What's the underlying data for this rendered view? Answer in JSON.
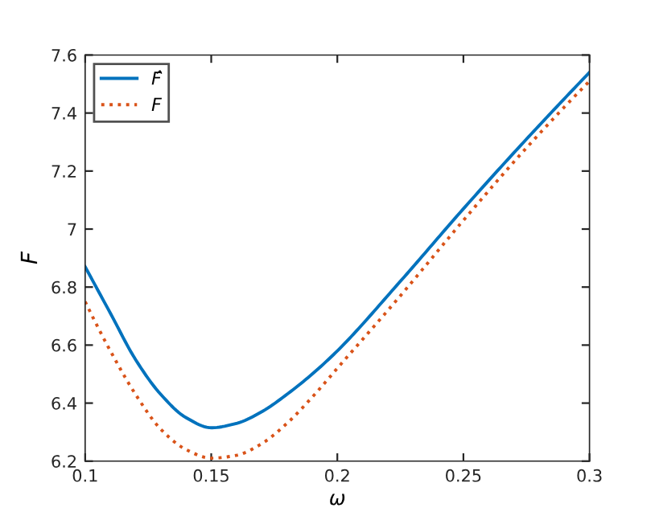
{
  "chart_data": {
    "type": "line",
    "xlabel": "ω",
    "ylabel": "F",
    "xlim": [
      0.1,
      0.3
    ],
    "xticks": [
      0.1,
      0.15,
      0.2,
      0.25,
      0.3
    ],
    "ylim": [
      6.2,
      7.6
    ],
    "yticks": [
      6.2,
      6.4,
      6.6,
      6.8,
      7,
      7.2,
      7.4,
      7.6
    ],
    "grid": false,
    "legend": "top left",
    "series": [
      {
        "name": "F̂",
        "color": "#0072bd",
        "line_style": "solid",
        "x": [
          0.1,
          0.11,
          0.12,
          0.13,
          0.14,
          0.15,
          0.16,
          0.17,
          0.18,
          0.19,
          0.2,
          0.225,
          0.25,
          0.275,
          0.3
        ],
        "values": [
          6.87,
          6.71,
          6.55,
          6.43,
          6.35,
          6.315,
          6.33,
          6.37,
          6.43,
          6.5,
          6.58,
          6.82,
          7.07,
          7.31,
          7.54
        ]
      },
      {
        "name": "F",
        "color": "#d95319",
        "line_style": "dotted",
        "x": [
          0.1,
          0.11,
          0.12,
          0.13,
          0.14,
          0.15,
          0.16,
          0.17,
          0.18,
          0.19,
          0.2,
          0.225,
          0.25,
          0.275,
          0.3
        ],
        "values": [
          6.75,
          6.58,
          6.43,
          6.31,
          6.24,
          6.21,
          6.22,
          6.26,
          6.33,
          6.42,
          6.52,
          6.77,
          7.03,
          7.28,
          7.51
        ]
      }
    ]
  }
}
